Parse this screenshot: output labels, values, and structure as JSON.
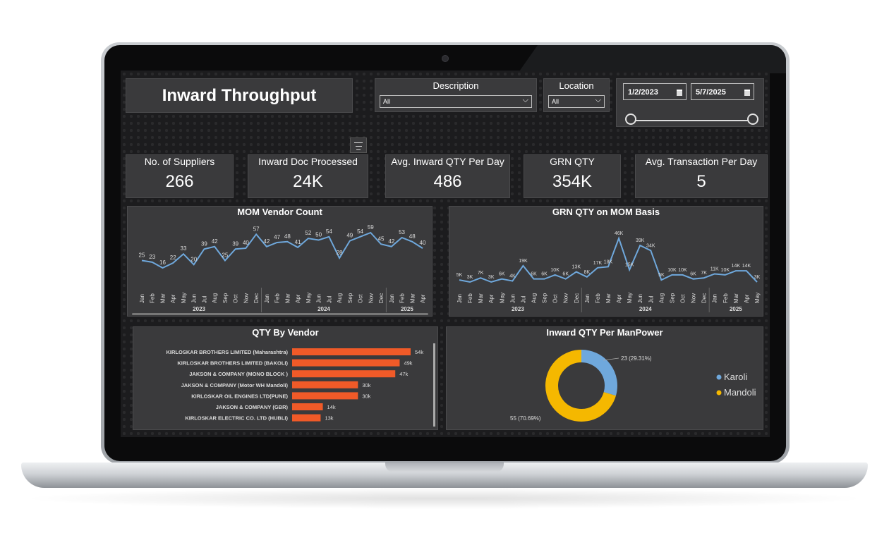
{
  "dashboard": {
    "title": "Inward Throughput",
    "description": {
      "label": "Description",
      "value": "All"
    },
    "location": {
      "label": "Location",
      "value": "All"
    },
    "date_range": {
      "start": "1/2/2023",
      "end": "5/7/2025"
    }
  },
  "kpis": [
    {
      "label": "No. of Suppliers",
      "value": "266"
    },
    {
      "label": "Inward Doc Processed",
      "value": "24K"
    },
    {
      "label": "Avg. Inward QTY Per Day",
      "value": "486"
    },
    {
      "label": "GRN QTY",
      "value": "354K"
    },
    {
      "label": "Avg. Transaction Per Day",
      "value": "5"
    }
  ],
  "colors": {
    "line": "#6fa8dc",
    "bar": "#f05a28",
    "karoli": "#6fa8dc",
    "mandoli": "#f5b800"
  },
  "chart_data": [
    {
      "type": "line",
      "title": "MOM Vendor Count",
      "months": [
        "Jan",
        "Feb",
        "Mar",
        "Apr",
        "May",
        "Jun",
        "Jul",
        "Aug",
        "Sep",
        "Oct",
        "Nov",
        "Dec",
        "Jan",
        "Feb",
        "Mar",
        "Apr",
        "May",
        "Jun",
        "Jul",
        "Aug",
        "Sep",
        "Oct",
        "Nov",
        "Dec",
        "Jan",
        "Feb",
        "Mar",
        "Apr"
      ],
      "years": [
        "2023",
        "2024",
        "2025"
      ],
      "values": [
        25,
        23,
        16,
        22,
        33,
        20,
        39,
        42,
        25,
        39,
        40,
        57,
        42,
        47,
        48,
        41,
        52,
        50,
        54,
        28,
        49,
        54,
        59,
        45,
        42,
        53,
        48,
        40
      ],
      "data_labels": [
        "25",
        "23",
        "16",
        "22",
        "33",
        "20",
        "39",
        "42",
        "25",
        "39",
        "40",
        "57",
        "42",
        "47",
        "48",
        "41",
        "52",
        "50",
        "54",
        "28",
        "49",
        "54",
        "59",
        "45",
        "42",
        "53",
        "48",
        "40"
      ]
    },
    {
      "type": "line",
      "title": "GRN QTY on MOM Basis",
      "months": [
        "Jan",
        "Feb",
        "Mar",
        "Apr",
        "May",
        "Jun",
        "Jul",
        "Aug",
        "Sep",
        "Oct",
        "Nov",
        "Dec",
        "Jan",
        "Feb",
        "Mar",
        "Apr",
        "May",
        "Jun",
        "Jul",
        "Aug",
        "Sep",
        "Oct",
        "Nov",
        "Dec",
        "Jan",
        "Feb",
        "Mar",
        "Apr",
        "May"
      ],
      "years": [
        "2023",
        "2024",
        "2025"
      ],
      "values": [
        5,
        3,
        7,
        3,
        6,
        4,
        19,
        6,
        6,
        10,
        6,
        13,
        8,
        17,
        18,
        46,
        15,
        39,
        34,
        5,
        10,
        10,
        6,
        7,
        11,
        10,
        14,
        14,
        3
      ],
      "data_labels": [
        "5K",
        "3K",
        "7K",
        "3K",
        "6K",
        "4K",
        "19K",
        "6K",
        "6K",
        "10K",
        "6K",
        "13K",
        "8K",
        "17K",
        "18K",
        "46K",
        "15K",
        "39K",
        "34K",
        "5K",
        "10K",
        "10K",
        "6K",
        "7K",
        "11K",
        "10K",
        "14K",
        "14K",
        "3K"
      ]
    },
    {
      "type": "bar",
      "title": "QTY By Vendor",
      "categories": [
        "KIRLOSKAR BROTHERS LIMITED (Maharashtra)",
        "KIRLOSKAR BROTHERS LIMITED (BAKOLI)",
        "JAKSON & COMPANY (MONO BLOCK )",
        "JAKSON & COMPANY (Motor WH Mandoli)",
        "KIRLOSKAR OIL ENGINES LTD(PUNE)",
        "JAKSON & COMPANY (GBR)",
        "KIRLOSKAR ELECTRIC CO. LTD (HUBLI)"
      ],
      "values": [
        54,
        49,
        47,
        30,
        30,
        14,
        13
      ],
      "data_labels": [
        "54k",
        "49k",
        "47k",
        "30k",
        "30k",
        "14k",
        "13k"
      ]
    },
    {
      "type": "pie",
      "title": "Inward QTY Per ManPower",
      "slices": [
        {
          "name": "Karoli",
          "value": 23,
          "label": "23 (29.31%)"
        },
        {
          "name": "Mandoli",
          "value": 55,
          "label": "55 (70.69%)"
        }
      ],
      "legend": [
        "Karoli",
        "Mandoli"
      ]
    }
  ]
}
